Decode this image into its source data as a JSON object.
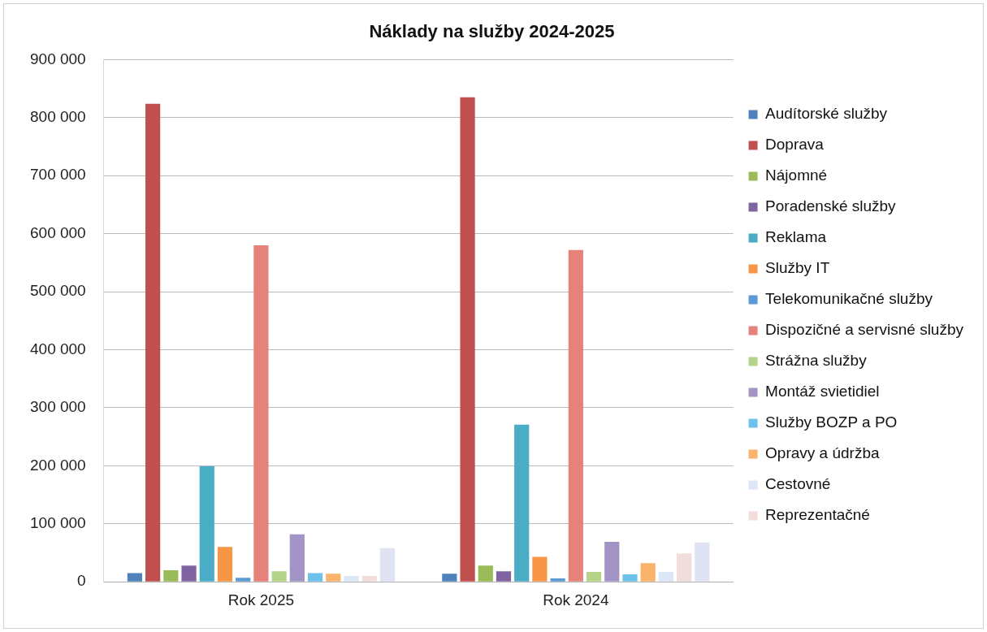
{
  "chart_data": {
    "type": "bar",
    "title": "Náklady na služby 2024-2025",
    "categories": [
      "Rok 2025",
      "Rok 2024"
    ],
    "series": [
      {
        "name": "Audítorské služby",
        "color": "#4f81bd",
        "values": [
          15000,
          14000
        ]
      },
      {
        "name": "Doprava",
        "color": "#c0504d",
        "values": [
          824000,
          835000
        ]
      },
      {
        "name": "Nájomné",
        "color": "#9bbb59",
        "values": [
          20000,
          28000
        ]
      },
      {
        "name": "Poradenské služby",
        "color": "#8064a2",
        "values": [
          28000,
          18000
        ]
      },
      {
        "name": "Reklama",
        "color": "#4bacc6",
        "values": [
          199000,
          271000
        ]
      },
      {
        "name": "Služby IT",
        "color": "#f79646",
        "values": [
          60000,
          43000
        ]
      },
      {
        "name": "Telekomunikačné služby",
        "color": "#5b9bd5",
        "values": [
          7000,
          6000
        ]
      },
      {
        "name": "Dispozičné a servisné služby",
        "color": "#e5827a",
        "values": [
          580000,
          572000
        ]
      },
      {
        "name": "Strážna služby",
        "color": "#b5d389",
        "values": [
          18000,
          17000
        ]
      },
      {
        "name": "Montáž svietidiel",
        "color": "#a394c6",
        "values": [
          82000,
          69000
        ]
      },
      {
        "name": "Služby BOZP a PO",
        "color": "#6cc2ea",
        "values": [
          15000,
          13000
        ]
      },
      {
        "name": "Opravy a údržba",
        "color": "#f9b36a",
        "values": [
          14000,
          32000
        ]
      },
      {
        "name": "Cestovné",
        "color": "#dbe7f6",
        "values": [
          10000,
          17000
        ]
      },
      {
        "name": "Reprezentačné",
        "color": "#f2dcdc",
        "values": [
          10000,
          49000
        ]
      },
      {
        "color": "#dfe3f3",
        "values": [
          58000,
          68000
        ]
      }
    ],
    "ylim": [
      0,
      900000
    ],
    "yticks": [
      {
        "value": 0,
        "label": "0"
      },
      {
        "value": 100000,
        "label": "100 000"
      },
      {
        "value": 200000,
        "label": "200 000"
      },
      {
        "value": 300000,
        "label": "300 000"
      },
      {
        "value": 400000,
        "label": "400 000"
      },
      {
        "value": 500000,
        "label": "500 000"
      },
      {
        "value": 600000,
        "label": "600 000"
      },
      {
        "value": 700000,
        "label": "700 000"
      },
      {
        "value": 800000,
        "label": "800 000"
      },
      {
        "value": 900000,
        "label": "900 000"
      }
    ],
    "grid": "y",
    "legend": "right"
  }
}
